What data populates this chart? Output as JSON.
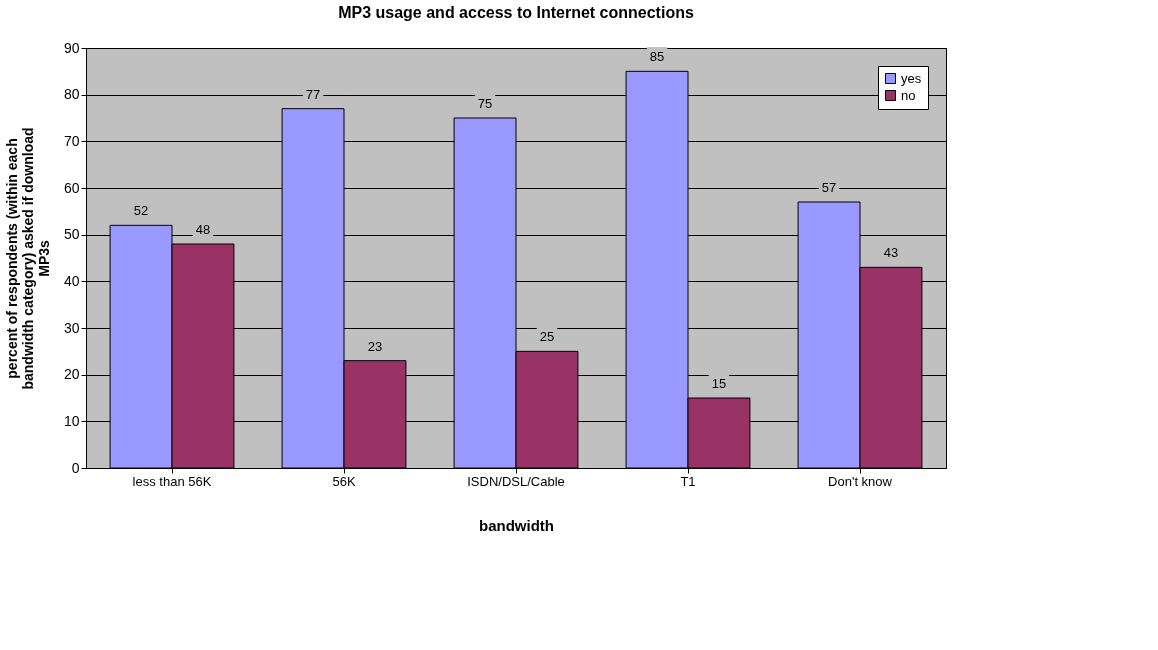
{
  "chart_data": {
    "type": "bar",
    "title": "MP3 usage and access to Internet connections",
    "xlabel": "bandwidth",
    "ylabel": "percent of respondents (within each bandwidth category) asked if download MP3s",
    "categories": [
      "less than 56K",
      "56K",
      "ISDN/DSL/Cable",
      "T1",
      "Don't know"
    ],
    "series": [
      {
        "name": "yes",
        "color": "#9999ff",
        "values": [
          52,
          77,
          75,
          85,
          57
        ]
      },
      {
        "name": "no",
        "color": "#993366",
        "values": [
          48,
          23,
          25,
          15,
          43
        ]
      }
    ],
    "ylim": [
      0,
      90
    ],
    "yticks": [
      0,
      10,
      20,
      30,
      40,
      50,
      60,
      70,
      80,
      90
    ],
    "grid": "y",
    "legend": "top right",
    "data_labels": true
  }
}
